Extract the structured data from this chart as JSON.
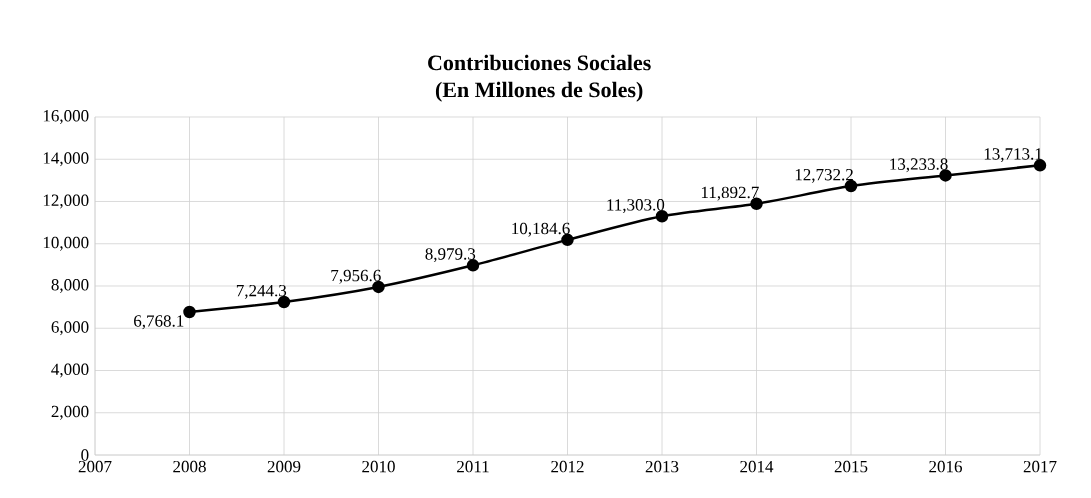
{
  "chart_data": {
    "type": "line",
    "title": "Contribuciones Sociales",
    "subtitle": "(En Millones de Soles)",
    "x": [
      2008,
      2009,
      2010,
      2011,
      2012,
      2013,
      2014,
      2015,
      2016,
      2017
    ],
    "values": [
      6768.1,
      7244.3,
      7956.6,
      8979.3,
      10184.6,
      11303.0,
      11892.7,
      12732.2,
      13233.8,
      13713.1
    ],
    "value_labels": [
      "6,768.1",
      "7,244.3",
      "7,956.6",
      "8,979.3",
      "10,184.6",
      "11,303.0",
      "11,892.7",
      "12,732.2",
      "13,233.8",
      "13,713.1"
    ],
    "color": "#000000",
    "marker": "circle",
    "line_style": "solid",
    "grid": true,
    "xlim": [
      2007,
      2017
    ],
    "xticks": [
      2007,
      2008,
      2009,
      2010,
      2011,
      2012,
      2013,
      2014,
      2015,
      2016,
      2017
    ],
    "ylim": [
      0,
      16000
    ],
    "yticks": [
      0,
      {
        "value": 2000,
        "label": "2,000"
      },
      {
        "value": 4000,
        "label": "4,000"
      },
      {
        "value": 6000,
        "label": "6,000"
      },
      {
        "value": 8000,
        "label": "8,000"
      },
      {
        "value": 10000,
        "label": "10,000"
      },
      {
        "value": 12000,
        "label": "12,000"
      },
      {
        "value": 14000,
        "label": "14,000"
      },
      {
        "value": 16000,
        "label": "16,000"
      }
    ]
  }
}
